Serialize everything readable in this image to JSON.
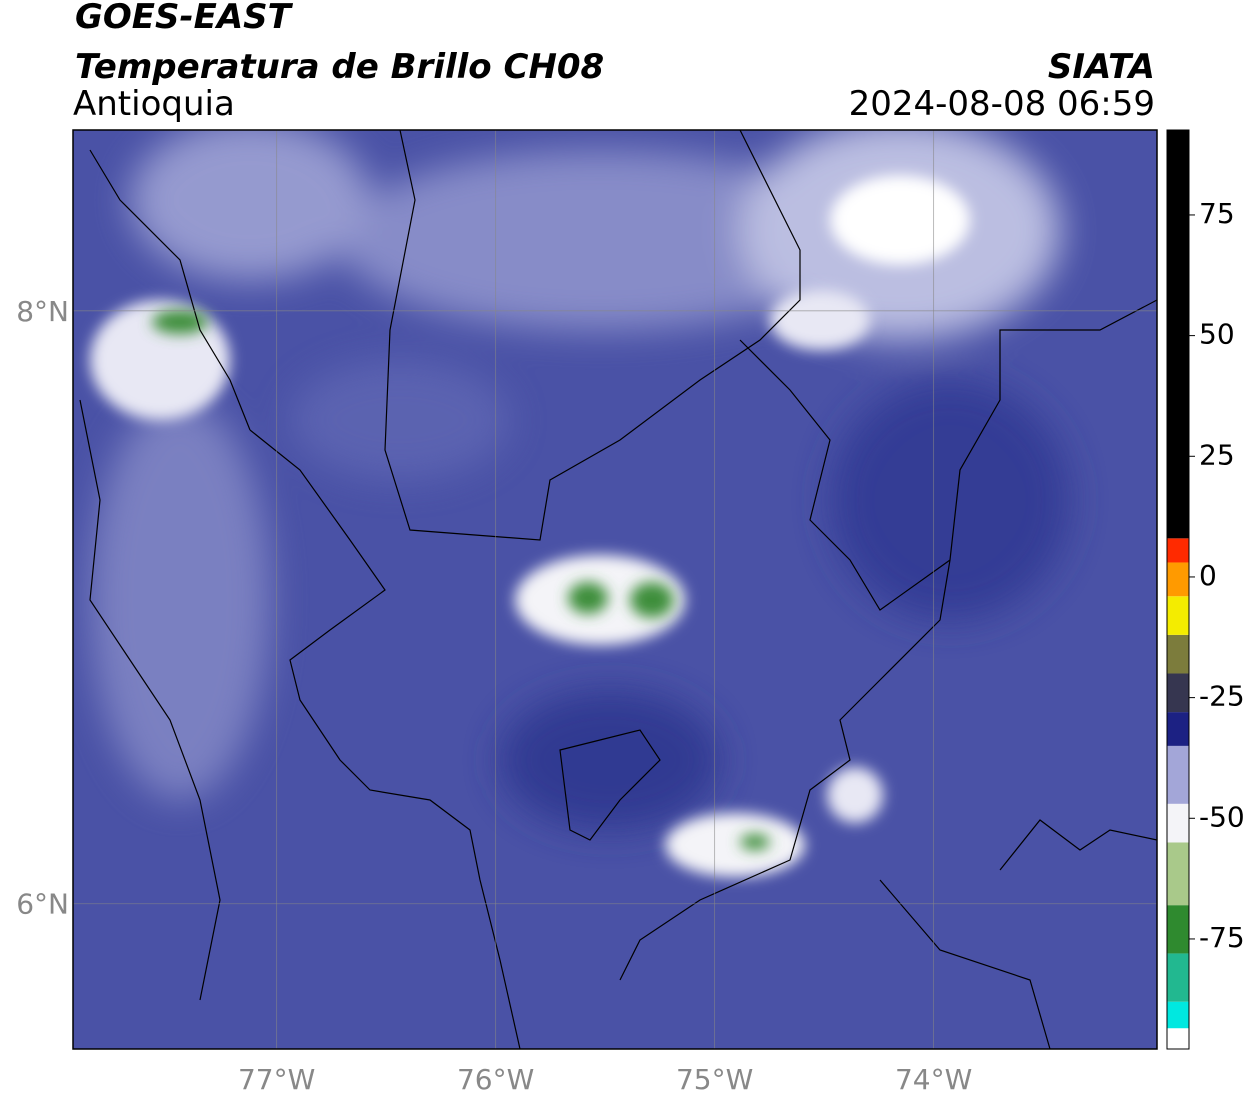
{
  "header": {
    "title": "GOES-EAST",
    "subtitle": "Temperatura de Brillo CH08",
    "region": "Antioquia",
    "source": "SIATA",
    "timestamp": "2024-08-08 06:59"
  },
  "map": {
    "xlim": [
      -77.93,
      -72.98
    ],
    "ylim": [
      5.51,
      8.61
    ],
    "xticks": [
      {
        "value": -77,
        "label": "77°W"
      },
      {
        "value": -76,
        "label": "76°W"
      },
      {
        "value": -75,
        "label": "75°W"
      },
      {
        "value": -74,
        "label": "74°W"
      }
    ],
    "yticks": [
      {
        "value": 6,
        "label": "6°N"
      },
      {
        "value": 8,
        "label": "8°N"
      }
    ],
    "grid": true
  },
  "colorbar": {
    "lim": [
      -97.8,
      92.6
    ],
    "ticks": [
      -75,
      -50,
      -25,
      0,
      25,
      50,
      75
    ],
    "bounds": [
      -97.8,
      -93.5,
      -88,
      -78,
      -68,
      -55,
      -47,
      -35,
      -28,
      -20,
      -12,
      -4,
      3,
      8,
      92.6
    ],
    "colors": [
      "#ffffff",
      "#00e8e0",
      "#22b890",
      "#2f8a2f",
      "#a9c98a",
      "#f4f4f8",
      "#a3a6d8",
      "#1c2183",
      "#363650",
      "#7c7c3c",
      "#f4ec00",
      "#ff9a00",
      "#ff2a00",
      "#000000"
    ]
  }
}
